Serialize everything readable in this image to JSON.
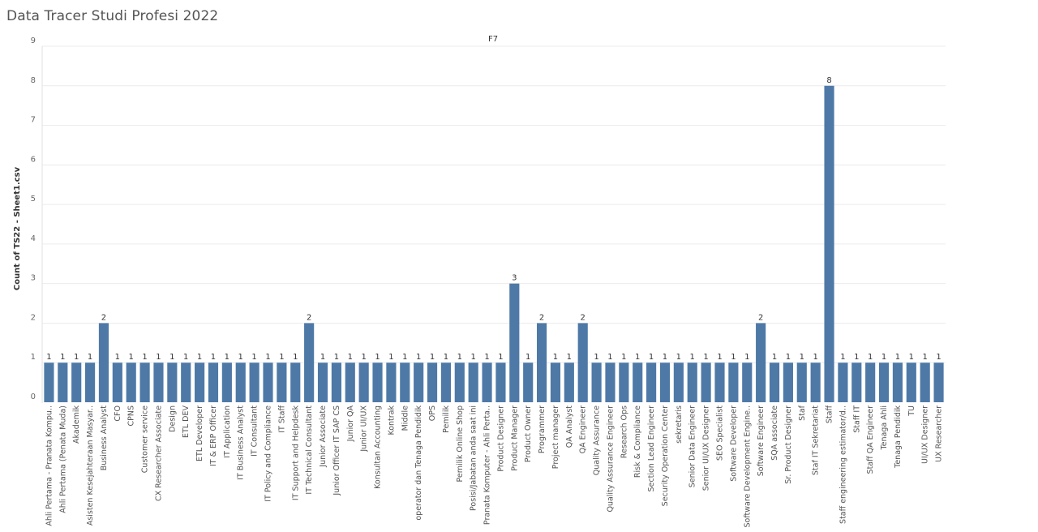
{
  "page_title": "Data Tracer Studi Profesi 2022",
  "chart_data": {
    "type": "bar",
    "title": "Data Tracer Studi Profesi 2022",
    "column_header": "F7",
    "xlabel": "",
    "ylabel": "Count of TS22 - Sheet1.csv",
    "ylim": [
      0,
      9
    ],
    "yticks": [
      0,
      1,
      2,
      3,
      4,
      5,
      6,
      7,
      8,
      9
    ],
    "grid": true,
    "bar_color": "#4e79a7",
    "categories": [
      "Ahli Pertama - Pranata Kompu..",
      "Ahli Pertama (Penata Muda)",
      "Akademik",
      "Asisten Kesejahteraan Masyar..",
      "Business Analyst",
      "CFO",
      "CPNS",
      "Customer service",
      "CX Researcher Associate",
      "Design",
      "ETL DEV",
      "ETL Developer",
      "IT & ERP Officer",
      "IT Application",
      "IT Business Analyst",
      "IT Consultant",
      "IT Policy and Compliance",
      "IT Staff",
      "IT Support and Helpdesk",
      "IT Technical Consultant",
      "Junior Associate",
      "Junior Officer IT SAP CS",
      "Junior QA",
      "Junior UI/UX",
      "Konsultan Accounting",
      "Kontrak",
      "Middle",
      "operator dan Tenaga Pendidik",
      "OPS",
      "Pemilik",
      "Pemilik Online Shop",
      "Posisi/Jabatan anda saat ini",
      "Pranata Komputer - Ahli Perta..",
      "Product Designer",
      "Product Manager",
      "Product Owner",
      "Programmer",
      "Project manager",
      "QA Analyst",
      "QA Engineer",
      "Quality Assurance",
      "Quality Assurance Engineer",
      "Research Ops",
      "Risk & Compliance",
      "Section Lead Engineer",
      "Security Operation Center",
      "sekretaris",
      "Senior Data Engineer",
      "Senior UI/UX Designer",
      "SEO Specialist",
      "Software Developer",
      "Software Development Engine..",
      "Software Engineer",
      "SQA associate",
      "Sr. Product Designer",
      "Staf",
      "Staf IT Sekretariat",
      "Staff",
      "Staff engineering estimator/d..",
      "Staff IT",
      "Staff QA Engineer",
      "Tenaga Ahli",
      "Tenaga Pendidik",
      "TU",
      "UI/UX Designer",
      "UX Researcher"
    ],
    "values": [
      1,
      1,
      1,
      1,
      2,
      1,
      1,
      1,
      1,
      1,
      1,
      1,
      1,
      1,
      1,
      1,
      1,
      1,
      1,
      2,
      1,
      1,
      1,
      1,
      1,
      1,
      1,
      1,
      1,
      1,
      1,
      1,
      1,
      1,
      3,
      1,
      2,
      1,
      1,
      2,
      1,
      1,
      1,
      1,
      1,
      1,
      1,
      1,
      1,
      1,
      1,
      1,
      2,
      1,
      1,
      1,
      1,
      8,
      1,
      1,
      1,
      1,
      1,
      1,
      1,
      1
    ]
  }
}
